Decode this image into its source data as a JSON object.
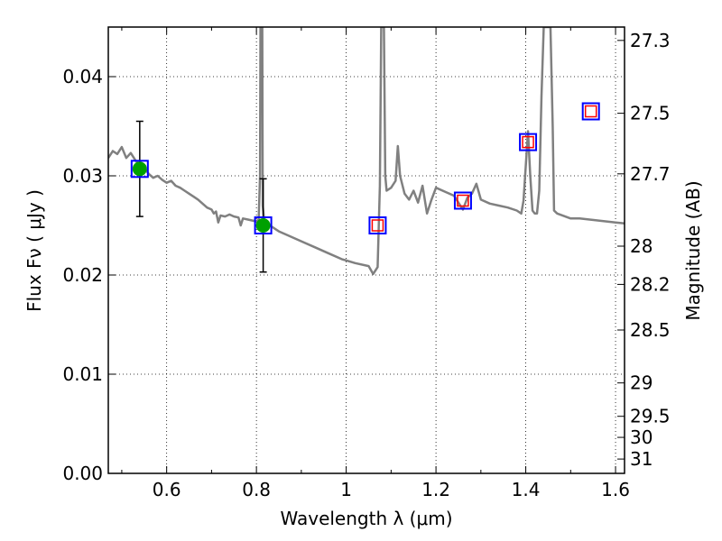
{
  "chart_data": {
    "type": "line",
    "xlabel": "Wavelength  λ (μm)",
    "ylabel": "Flux  Fν ( μJy )",
    "ylabel_right": "Magnitude (AB)",
    "xlim": [
      0.47,
      1.62
    ],
    "ylim": [
      0.0,
      0.045
    ],
    "grid": true,
    "x_ticks": [
      0.6,
      0.8,
      1.0,
      1.2,
      1.4,
      1.6
    ],
    "x_tick_labels": [
      "0.6",
      "0.8",
      "1",
      "1.2",
      "1.4",
      "1.6"
    ],
    "y_ticks": [
      0.0,
      0.01,
      0.02,
      0.03,
      0.04
    ],
    "y_tick_labels": [
      "0.00",
      "0.01",
      "0.02",
      "0.03",
      "0.04"
    ],
    "right_ticks": [
      {
        "label": "27.3",
        "mag": 27.3
      },
      {
        "label": "27.5",
        "mag": 27.5
      },
      {
        "label": "27.7",
        "mag": 27.7
      },
      {
        "label": "28",
        "mag": 28.0
      },
      {
        "label": "28.2",
        "mag": 28.2
      },
      {
        "label": "28.5",
        "mag": 28.5
      },
      {
        "label": "29",
        "mag": 29.0
      },
      {
        "label": "29.5",
        "mag": 29.5
      },
      {
        "label": "30",
        "mag": 30.0
      },
      {
        "label": "31",
        "mag": 31.0
      }
    ],
    "series": [
      {
        "type": "line",
        "color": "#808080",
        "points": [
          [
            0.47,
            0.0318
          ],
          [
            0.48,
            0.0325
          ],
          [
            0.49,
            0.0322
          ],
          [
            0.5,
            0.0329
          ],
          [
            0.51,
            0.0318
          ],
          [
            0.52,
            0.0323
          ],
          [
            0.53,
            0.0316
          ],
          [
            0.54,
            0.031
          ],
          [
            0.55,
            0.0308
          ],
          [
            0.56,
            0.0302
          ],
          [
            0.57,
            0.0298
          ],
          [
            0.58,
            0.03
          ],
          [
            0.59,
            0.0296
          ],
          [
            0.6,
            0.0293
          ],
          [
            0.61,
            0.0295
          ],
          [
            0.62,
            0.029
          ],
          [
            0.63,
            0.0288
          ],
          [
            0.64,
            0.0285
          ],
          [
            0.65,
            0.0282
          ],
          [
            0.66,
            0.0279
          ],
          [
            0.67,
            0.0276
          ],
          [
            0.68,
            0.0272
          ],
          [
            0.69,
            0.0268
          ],
          [
            0.7,
            0.0266
          ],
          [
            0.705,
            0.0262
          ],
          [
            0.71,
            0.0264
          ],
          [
            0.715,
            0.0253
          ],
          [
            0.72,
            0.026
          ],
          [
            0.73,
            0.0259
          ],
          [
            0.74,
            0.0261
          ],
          [
            0.75,
            0.0259
          ],
          [
            0.76,
            0.0258
          ],
          [
            0.765,
            0.025
          ],
          [
            0.77,
            0.0257
          ],
          [
            0.78,
            0.0256
          ],
          [
            0.79,
            0.0255
          ],
          [
            0.8,
            0.0254
          ],
          [
            0.805,
            0.0256
          ],
          [
            0.808,
            0.03
          ],
          [
            0.809,
            0.045
          ],
          [
            0.813,
            0.045
          ],
          [
            0.814,
            0.027
          ],
          [
            0.818,
            0.0252
          ],
          [
            0.83,
            0.025
          ],
          [
            0.85,
            0.0244
          ],
          [
            0.87,
            0.024
          ],
          [
            0.9,
            0.0234
          ],
          [
            0.93,
            0.0228
          ],
          [
            0.96,
            0.0222
          ],
          [
            0.99,
            0.0216
          ],
          [
            1.02,
            0.0212
          ],
          [
            1.05,
            0.0209
          ],
          [
            1.06,
            0.0201
          ],
          [
            1.07,
            0.0208
          ],
          [
            1.075,
            0.029
          ],
          [
            1.078,
            0.045
          ],
          [
            1.084,
            0.045
          ],
          [
            1.087,
            0.03
          ],
          [
            1.09,
            0.0285
          ],
          [
            1.1,
            0.0288
          ],
          [
            1.11,
            0.0295
          ],
          [
            1.115,
            0.033
          ],
          [
            1.12,
            0.03
          ],
          [
            1.13,
            0.0282
          ],
          [
            1.14,
            0.0276
          ],
          [
            1.15,
            0.0285
          ],
          [
            1.16,
            0.0273
          ],
          [
            1.17,
            0.029
          ],
          [
            1.18,
            0.0262
          ],
          [
            1.19,
            0.0276
          ],
          [
            1.2,
            0.0288
          ],
          [
            1.22,
            0.0284
          ],
          [
            1.24,
            0.028
          ],
          [
            1.26,
            0.0266
          ],
          [
            1.27,
            0.0278
          ],
          [
            1.28,
            0.0282
          ],
          [
            1.29,
            0.0292
          ],
          [
            1.3,
            0.0276
          ],
          [
            1.32,
            0.0272
          ],
          [
            1.34,
            0.027
          ],
          [
            1.36,
            0.0268
          ],
          [
            1.38,
            0.0265
          ],
          [
            1.39,
            0.0262
          ],
          [
            1.395,
            0.0275
          ],
          [
            1.4,
            0.031
          ],
          [
            1.405,
            0.0345
          ],
          [
            1.41,
            0.03
          ],
          [
            1.415,
            0.0265
          ],
          [
            1.42,
            0.0262
          ],
          [
            1.425,
            0.0262
          ],
          [
            1.43,
            0.0285
          ],
          [
            1.435,
            0.038
          ],
          [
            1.44,
            0.045
          ],
          [
            1.455,
            0.045
          ],
          [
            1.46,
            0.035
          ],
          [
            1.463,
            0.0265
          ],
          [
            1.47,
            0.0262
          ],
          [
            1.5,
            0.0257
          ],
          [
            1.52,
            0.0257
          ],
          [
            1.54,
            0.0256
          ],
          [
            1.56,
            0.0255
          ],
          [
            1.58,
            0.0254
          ],
          [
            1.6,
            0.0253
          ],
          [
            1.62,
            0.0252
          ]
        ]
      },
      {
        "type": "errorbar",
        "color": "#000000",
        "points": [
          {
            "x": 0.54,
            "y": 0.0307,
            "ylo": 0.0259,
            "yhi": 0.0355
          },
          {
            "x": 0.815,
            "y": 0.025,
            "ylo": 0.0203,
            "yhi": 0.0297
          }
        ]
      },
      {
        "type": "scatter",
        "marker": "circle",
        "color": "#00a000",
        "points": [
          [
            0.54,
            0.0307
          ],
          [
            0.815,
            0.025
          ]
        ]
      },
      {
        "type": "scatter",
        "marker": "open-square",
        "color": "#0000ff",
        "points": [
          [
            0.54,
            0.0307
          ],
          [
            0.815,
            0.025
          ],
          [
            1.07,
            0.025
          ],
          [
            1.26,
            0.0275
          ],
          [
            1.405,
            0.0334
          ],
          [
            1.545,
            0.0365
          ]
        ]
      },
      {
        "type": "scatter",
        "marker": "open-square-small",
        "color": "#ff0000",
        "points": [
          [
            1.07,
            0.025
          ],
          [
            1.26,
            0.0275
          ],
          [
            1.405,
            0.0334
          ],
          [
            1.545,
            0.0365
          ]
        ]
      }
    ]
  }
}
